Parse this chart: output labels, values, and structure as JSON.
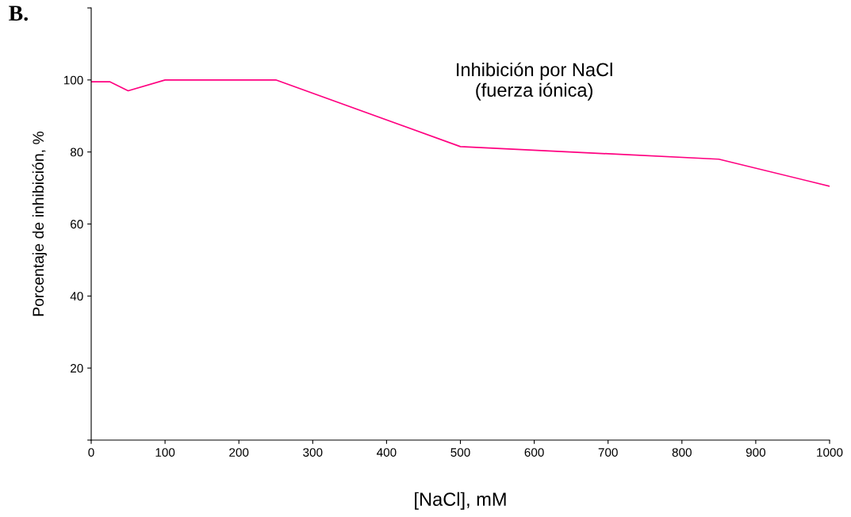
{
  "chart_data": {
    "type": "line",
    "title": "Inhibición por NaCl\n(fuerza iónica)",
    "xlabel": "[NaCl], mM",
    "ylabel": "Porcentaje de inhibición, %",
    "annotations": [
      "B."
    ],
    "x": [
      0,
      25,
      50,
      100,
      250,
      500,
      850,
      1000
    ],
    "series": [
      {
        "color": "#ff0080",
        "values": [
          99.5,
          99.5,
          97,
          100,
          100,
          81.5,
          78,
          70.5
        ]
      }
    ],
    "xlim": [
      0,
      1000
    ],
    "xticks": [
      0,
      100,
      200,
      300,
      400,
      500,
      600,
      700,
      800,
      900,
      1000
    ],
    "ylim": [
      0,
      120
    ],
    "yticks": [
      {
        "value": 0,
        "label": null
      },
      20,
      40,
      60,
      80,
      100,
      {
        "value": 120,
        "label": null
      }
    ],
    "grid": false,
    "legend": false,
    "marker": "none",
    "line_style": "solid"
  }
}
